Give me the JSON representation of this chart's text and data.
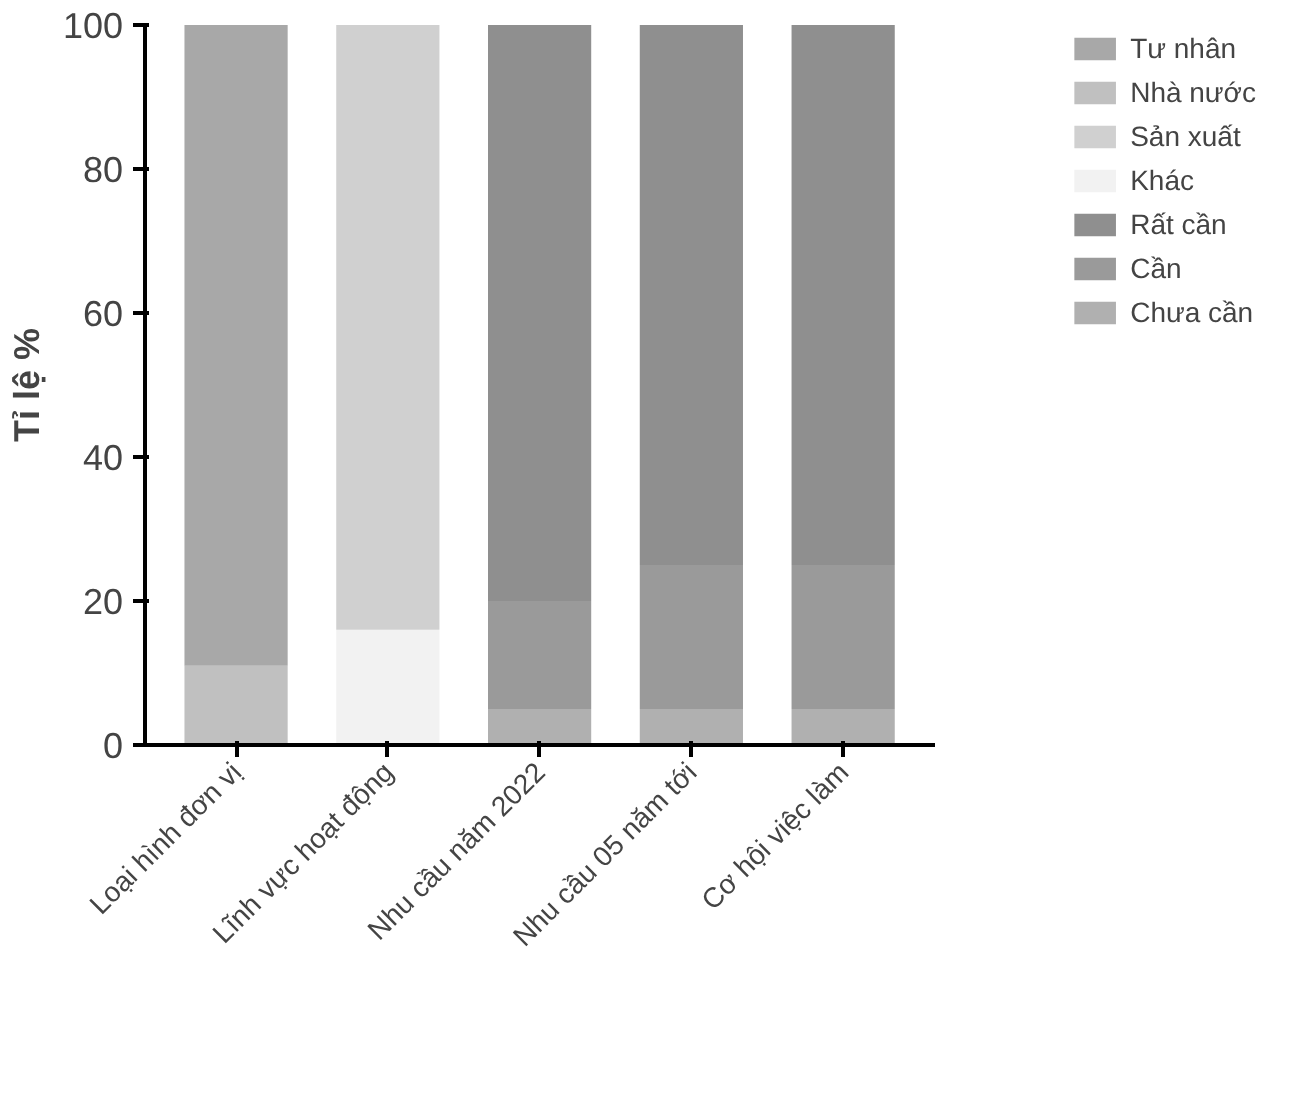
{
  "chart_data": {
    "type": "bar",
    "stacked": true,
    "ylabel": "Tỉ lệ %",
    "categories": [
      "Loại hình đơn vị",
      "Lĩnh vực hoạt động",
      "Nhu cầu năm 2022",
      "Nhu cầu 05 năm tới",
      "Cơ hội việc làm"
    ],
    "series": [
      {
        "name": "Chưa cần",
        "color": "#b0b0b0",
        "values": [
          null,
          null,
          5,
          5,
          5
        ]
      },
      {
        "name": "Cần",
        "color": "#9a9a9a",
        "values": [
          null,
          null,
          15,
          20,
          20
        ]
      },
      {
        "name": "Rất cần",
        "color": "#8f8f8f",
        "values": [
          null,
          null,
          80,
          75,
          75
        ]
      },
      {
        "name": "Khác",
        "color": "#f2f2f2",
        "values": [
          null,
          16,
          null,
          null,
          null
        ]
      },
      {
        "name": "Sản xuất",
        "color": "#d0d0d0",
        "values": [
          null,
          84,
          null,
          null,
          null
        ]
      },
      {
        "name": "Nhà nước",
        "color": "#c0c0c0",
        "values": [
          11,
          null,
          null,
          null,
          null
        ]
      },
      {
        "name": "Tư nhân",
        "color": "#a8a8a8",
        "values": [
          89,
          null,
          null,
          null,
          null
        ]
      }
    ],
    "ylim": [
      0,
      100
    ],
    "yticks": [
      0,
      20,
      40,
      60,
      80,
      100
    ],
    "grid": false,
    "legend": "right"
  }
}
